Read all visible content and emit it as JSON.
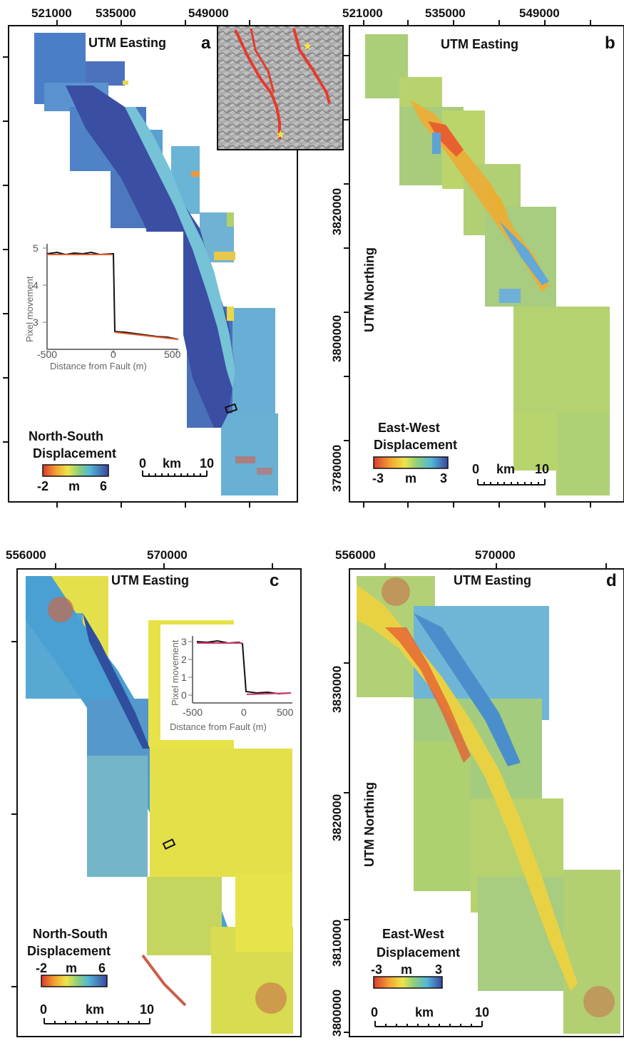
{
  "colors": {
    "ns_blue_dark": "#3a55a6",
    "ns_blue": "#4d7fc7",
    "ns_cyan": "#6fb6d8",
    "yellow": "#e8e04a",
    "green_yellow": "#a6cf7a",
    "orange": "#f0a040",
    "red": "#d84a3a",
    "fault_red": "#e8392c",
    "profile_orange": "#e05a2a",
    "profile_pink": "#d43a6a"
  },
  "panels": {
    "a": {
      "letter": "a",
      "easting_title": "UTM Easting",
      "easting_ticks": [
        "521000",
        "535000",
        "549000"
      ],
      "colorbar": {
        "title_line1": "North-South",
        "title_line2": "Displacement",
        "min": "-2",
        "unit": "m",
        "max": "6"
      },
      "scale": {
        "start": "0",
        "unit": "km",
        "end": "10"
      },
      "inset_profile": {
        "ylabel": "Pixel movement",
        "xlabel": "Distance from Fault (m)",
        "yticks": [
          "3",
          "4",
          "5"
        ],
        "xticks": [
          "-500",
          "0",
          "500"
        ]
      },
      "location_map_icon": "fault-location-map"
    },
    "b": {
      "letter": "b",
      "easting_title": "UTM Easting",
      "easting_ticks": [
        "521000",
        "535000",
        "549000"
      ],
      "northing_title": "UTM Northing",
      "northing_ticks": [
        "3820000",
        "3800000",
        "3780000"
      ],
      "colorbar": {
        "title_line1": "East-West",
        "title_line2": "Displacement",
        "min": "-3",
        "unit": "m",
        "max": "3"
      },
      "scale": {
        "start": "0",
        "unit": "km",
        "end": "10"
      }
    },
    "c": {
      "letter": "c",
      "easting_title": "UTM Easting",
      "easting_ticks": [
        "556000",
        "570000"
      ],
      "colorbar": {
        "title_line1": "North-South",
        "title_line2": "Displacement",
        "min": "-2",
        "unit": "m",
        "max": "6"
      },
      "scale": {
        "start": "0",
        "unit": "km",
        "end": "10"
      },
      "inset_profile": {
        "ylabel": "Pixel movement",
        "xlabel": "Distance from Fault (m)",
        "yticks": [
          "0",
          "1",
          "2",
          "3"
        ],
        "xticks": [
          "-500",
          "0",
          "500"
        ]
      }
    },
    "d": {
      "letter": "d",
      "easting_title": "UTM Easting",
      "easting_ticks": [
        "556000",
        "570000"
      ],
      "northing_title": "UTM Northing",
      "northing_ticks": [
        "3830000",
        "3820000",
        "3810000",
        "3800000"
      ],
      "colorbar": {
        "title_line1": "East-West",
        "title_line2": "Displacement",
        "min": "-3",
        "unit": "m",
        "max": "3"
      },
      "scale": {
        "start": "0",
        "unit": "km",
        "end": "10"
      }
    }
  }
}
